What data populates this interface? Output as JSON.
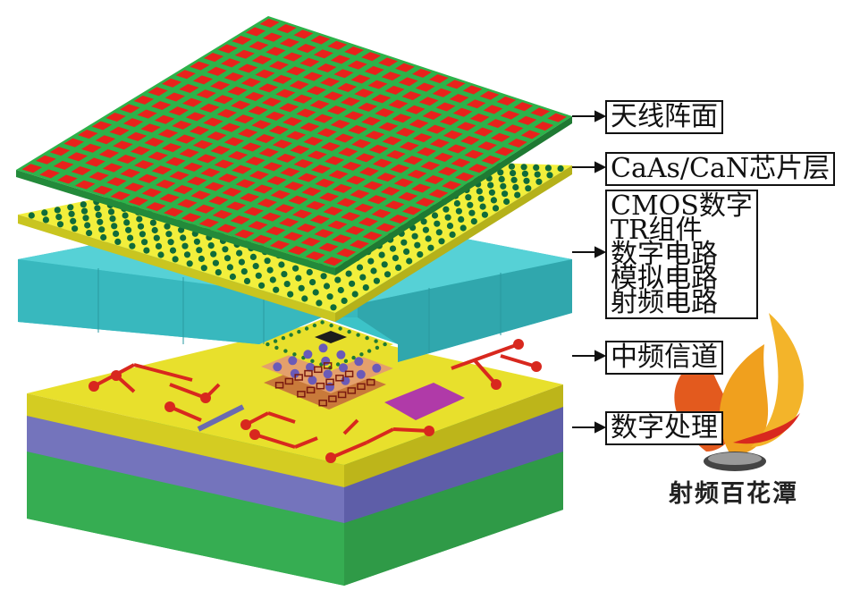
{
  "labels": {
    "antenna": "天线阵面",
    "chip_layer": "CaAs/CaN芯片层",
    "stack": [
      "CMOS数字",
      "TR组件",
      "数字电路",
      "模拟电路",
      "射频电路"
    ],
    "if_channel": "中频信道",
    "digital_processing": "数字处理"
  },
  "watermark": {
    "text": "射频百花潭"
  },
  "colors": {
    "antenna_board": "#2db34a",
    "antenna_patch": "#e8221c",
    "chip_layer": "#f2ef3c",
    "via_dot": "#0f6b3a",
    "module_block": "#3cc3c8",
    "pcb_top": "#e8e02c",
    "trace": "#d8281e",
    "purple_layer": "#7070b8",
    "base_block": "#3cb85a",
    "chip_pad": "#b03aa8"
  }
}
